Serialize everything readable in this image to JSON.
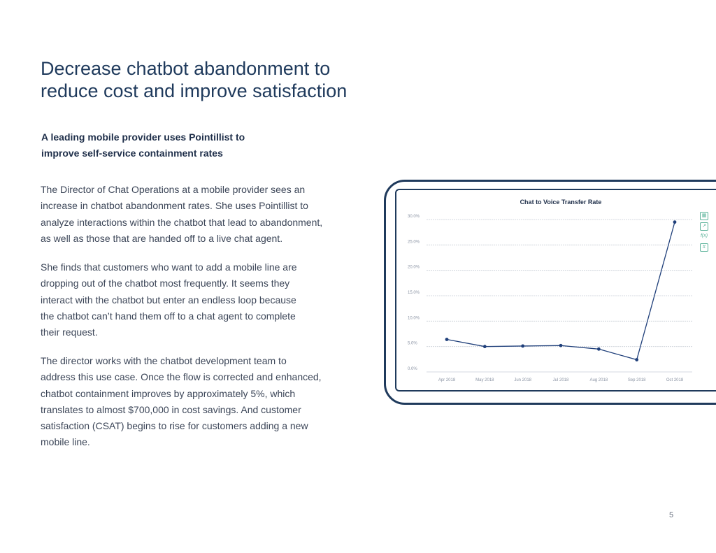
{
  "title": {
    "line1": "Decrease chatbot abandonment to",
    "line2": "reduce cost and improve satisfaction"
  },
  "subhead": {
    "line1": "A leading mobile provider uses Pointillist to",
    "line2": "improve self-service containment rates"
  },
  "paragraphs": [
    {
      "lines": [
        "The Director of Chat Operations at a mobile provider sees an",
        "increase in chatbot abandonment rates. She uses Pointillist to",
        "analyze interactions within the chatbot that lead to abandonment,",
        "as well as those that are handed off to a live chat agent."
      ]
    },
    {
      "lines": [
        "She finds that customers who want to add a mobile line are",
        "dropping out of the chatbot most frequently. It seems they",
        "interact with the chatbot but enter an endless loop because",
        "the chatbot can’t hand them off to a chat agent to complete",
        "their request."
      ]
    },
    {
      "lines": [
        "The director works with the chatbot development team to",
        "address this use case. Once the flow is corrected and enhanced,",
        "chatbot containment improves by approximately 5%, which",
        "translates to almost $700,000 in cost savings. And customer",
        "satisfaction (CSAT) begins to rise for customers adding a new",
        "mobile line."
      ]
    }
  ],
  "page_number": "5",
  "side_icons": [
    "table-icon",
    "chart-icon",
    "function-icon",
    "number-icon"
  ],
  "side_icon_glyphs": [
    "▦",
    "↗",
    "f(x)",
    "#"
  ],
  "colors": {
    "title": "#1f3a5c",
    "line": "#1f3f7a",
    "accent": "#5ab39a"
  },
  "chart_data": {
    "type": "line",
    "title": "Chat to Voice Transfer Rate",
    "categories": [
      "Apr 2018",
      "May 2018",
      "Jun 2018",
      "Jul 2018",
      "Aug 2018",
      "Sep 2018",
      "Oct 2018"
    ],
    "series": [
      {
        "name": "Chat to Voice Transfer Rate",
        "values": [
          6.4,
          5.0,
          5.1,
          5.2,
          4.5,
          2.4,
          29.5
        ]
      }
    ],
    "y_ticks": [
      "0.0%",
      "5.0%",
      "10.0%",
      "15.0%",
      "20.0%",
      "25.0%",
      "30.0%"
    ],
    "ylim": [
      0,
      30
    ],
    "xlabel": "",
    "ylabel": "",
    "grid": true
  }
}
